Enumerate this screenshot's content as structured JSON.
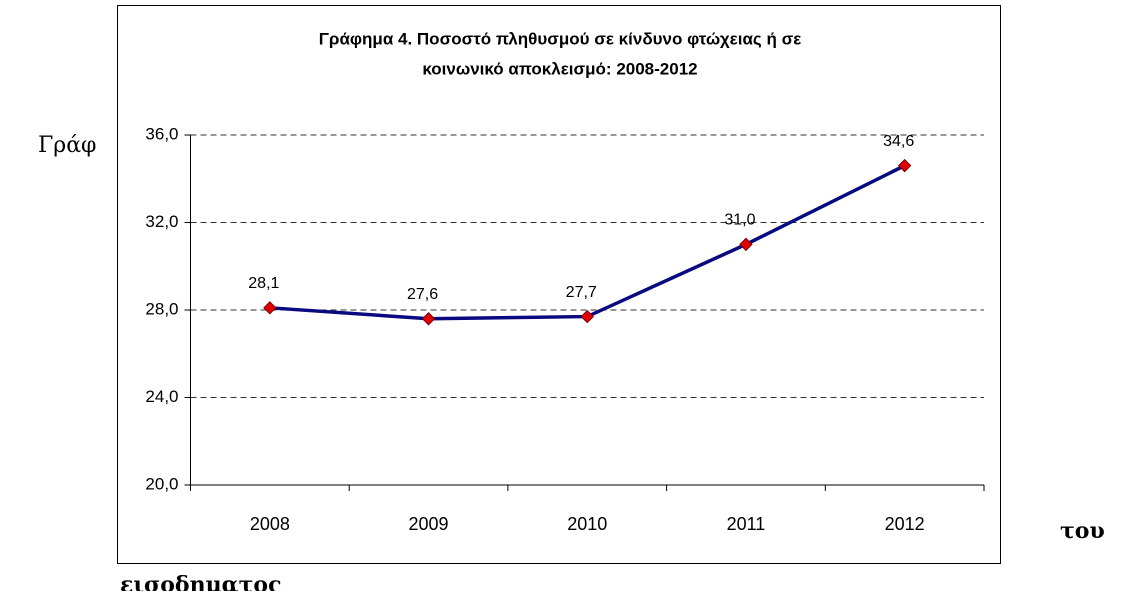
{
  "page_text": [
    "Γράφ",
    "του",
    "εισοδηματος"
  ],
  "chart_data": {
    "type": "line",
    "title_lines": [
      "Γράφημα 4. Ποσοστό πληθυσμού σε κίνδυνο φτώχειας ή σε",
      "κοινωνικό αποκλεισμό: 2008-2012"
    ],
    "categories": [
      "2008",
      "2009",
      "2010",
      "2011",
      "2012"
    ],
    "series": [
      {
        "color": "#0a0a80",
        "marker_color": "#e00000",
        "values": [
          28.1,
          27.6,
          27.7,
          31.0,
          34.6
        ],
        "value_labels": [
          "28,1",
          "27,6",
          "27,7",
          "31,0",
          "34,6"
        ]
      }
    ],
    "ylim": [
      20,
      36
    ],
    "yticks": [
      {
        "value": 20,
        "label": "20,0"
      },
      {
        "value": 24,
        "label": "24,0"
      },
      {
        "value": 28,
        "label": "28,0"
      },
      {
        "value": 32,
        "label": "32,0"
      },
      {
        "value": 36,
        "label": "36,0"
      }
    ],
    "grid": true
  }
}
